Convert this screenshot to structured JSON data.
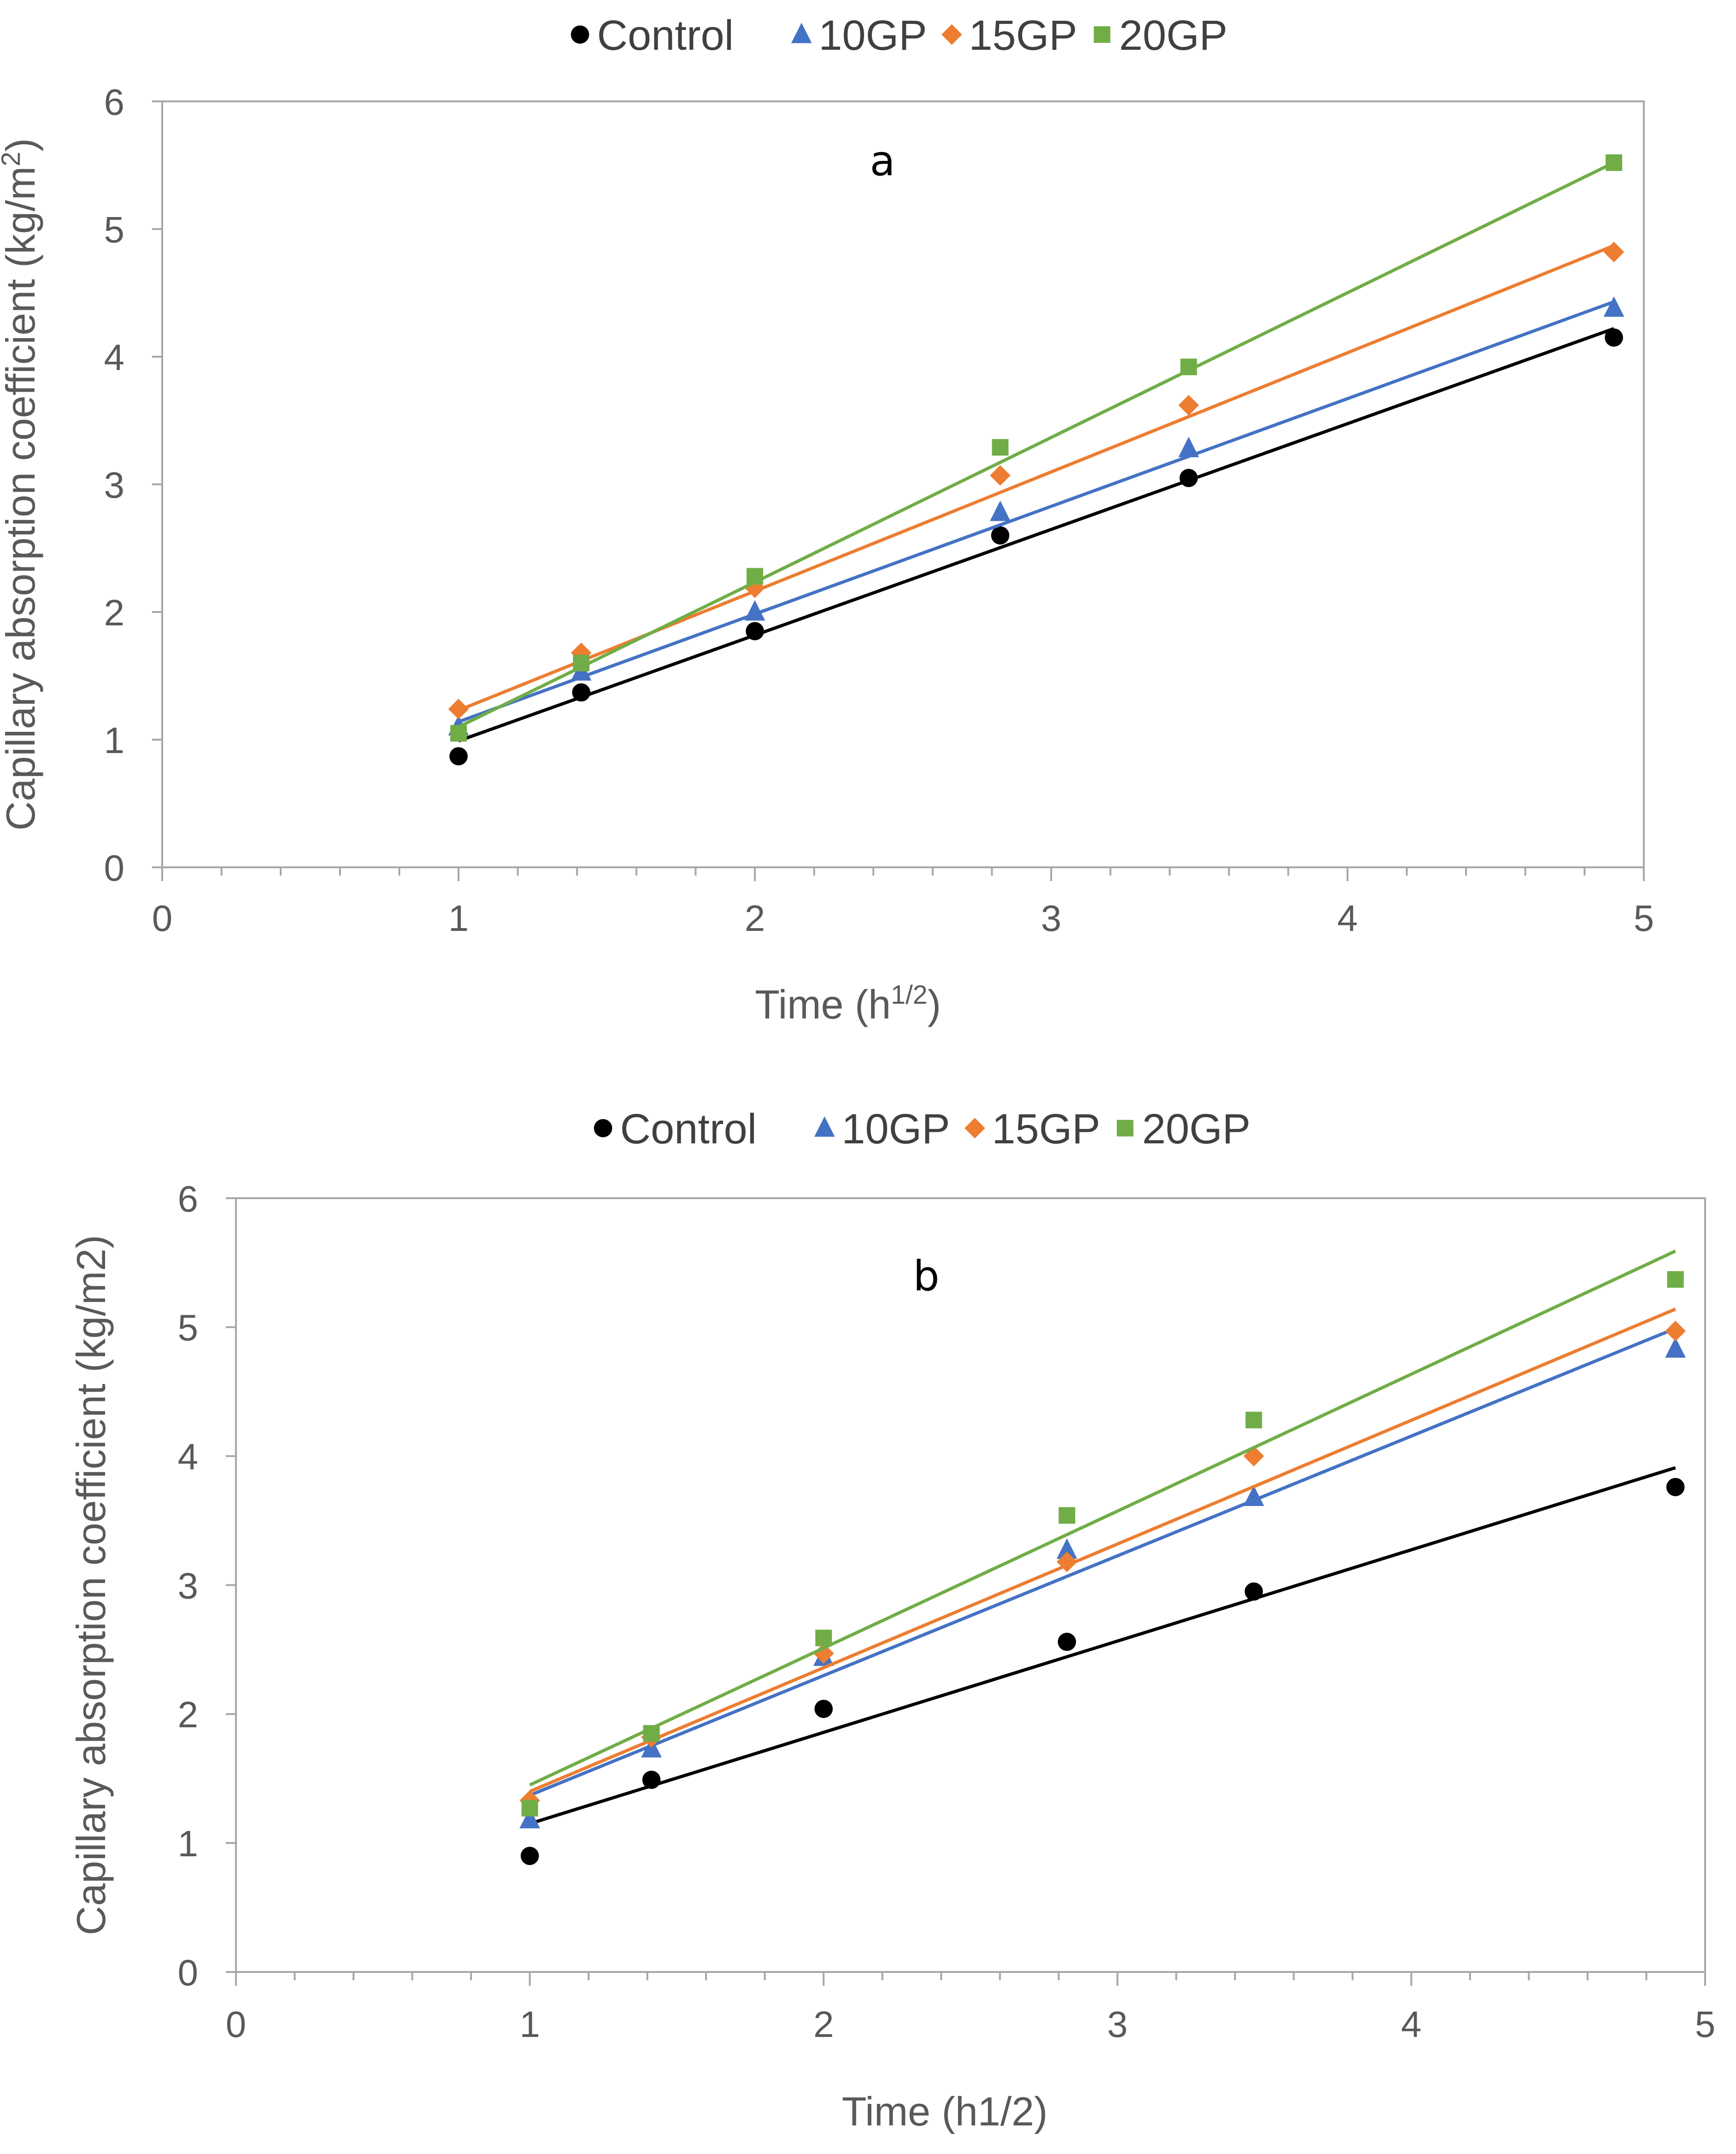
{
  "colors": {
    "control": "#000000",
    "10GP": "#4472C4",
    "15GP": "#ED7D31",
    "20GP": "#70AD47",
    "axis": "#A6A6A6",
    "text": "#595959"
  },
  "chart_data": [
    {
      "type": "scatter",
      "panel_label": "a",
      "xlabel_main": "Time (h",
      "xlabel_sup": "1/2",
      "xlabel_end": ")",
      "ylabel_main": "Capillary absorption coefficient (kg/m",
      "ylabel_sup": "2",
      "ylabel_end": ")",
      "xlim": [
        0,
        5
      ],
      "ylim": [
        0,
        6
      ],
      "xticks": [
        "0",
        "1",
        "2",
        "3",
        "4",
        "5"
      ],
      "yticks": [
        "0",
        "1",
        "2",
        "3",
        "4",
        "5",
        "6"
      ],
      "legend_position": "top",
      "x": [
        1,
        1.414,
        2,
        2.828,
        3.464,
        4.899
      ],
      "series": [
        {
          "name": "Control",
          "key": "control",
          "marker": "circle",
          "values": [
            0.87,
            1.37,
            1.85,
            2.6,
            3.05,
            4.15
          ],
          "trend": [
            0.99,
            4.22
          ]
        },
        {
          "name": "10GP",
          "key": "10GP",
          "marker": "triangle",
          "values": [
            1.1,
            1.53,
            2.0,
            2.78,
            3.28,
            4.38
          ],
          "trend": [
            1.14,
            4.43
          ]
        },
        {
          "name": "15GP",
          "key": "15GP",
          "marker": "diamond",
          "values": [
            1.24,
            1.68,
            2.19,
            3.07,
            3.62,
            4.82
          ],
          "trend": [
            1.23,
            4.87
          ]
        },
        {
          "name": "20GP",
          "key": "20GP",
          "marker": "square",
          "values": [
            1.05,
            1.6,
            2.28,
            3.29,
            3.92,
            5.52
          ],
          "trend": [
            1.1,
            5.52
          ]
        }
      ]
    },
    {
      "type": "scatter",
      "panel_label": "b",
      "xlabel_main": "Time (h1/2)",
      "xlabel_sup": "",
      "xlabel_end": "",
      "ylabel_main": "Capillary absorption coefficient (kg/m2)",
      "ylabel_sup": "",
      "ylabel_end": "",
      "xlim": [
        0,
        5
      ],
      "ylim": [
        0,
        6
      ],
      "xticks": [
        "0",
        "1",
        "2",
        "3",
        "4",
        "5"
      ],
      "yticks": [
        "0",
        "1",
        "2",
        "3",
        "4",
        "5",
        "6"
      ],
      "legend_position": "top",
      "x": [
        1,
        1.414,
        2,
        2.828,
        3.464,
        4.899
      ],
      "series": [
        {
          "name": "Control",
          "key": "control",
          "marker": "circle",
          "values": [
            0.9,
            1.49,
            2.04,
            2.56,
            2.95,
            3.76
          ],
          "trend": [
            1.15,
            3.91
          ]
        },
        {
          "name": "10GP",
          "key": "10GP",
          "marker": "triangle",
          "values": [
            1.18,
            1.73,
            2.44,
            3.27,
            3.68,
            4.83
          ],
          "trend": [
            1.37,
            4.99
          ]
        },
        {
          "name": "15GP",
          "key": "15GP",
          "marker": "diamond",
          "values": [
            1.33,
            1.82,
            2.47,
            3.18,
            4.0,
            4.97
          ],
          "trend": [
            1.4,
            5.14
          ]
        },
        {
          "name": "20GP",
          "key": "20GP",
          "marker": "square",
          "values": [
            1.27,
            1.85,
            2.59,
            3.54,
            4.28,
            5.37
          ],
          "trend": [
            1.45,
            5.59
          ]
        }
      ]
    }
  ]
}
